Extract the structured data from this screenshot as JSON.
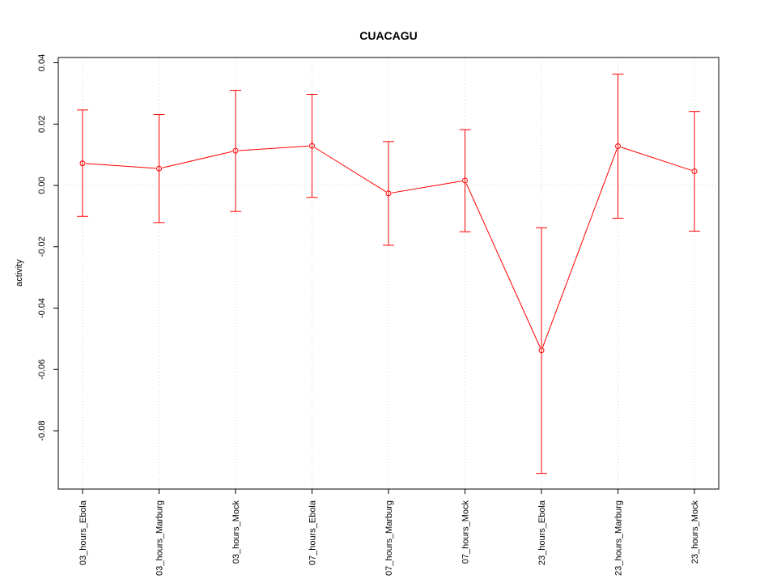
{
  "chart_data": {
    "type": "line",
    "title": "CUACAGU",
    "xlabel": "",
    "ylabel": "activity",
    "categories": [
      "03_hours_Ebola",
      "03_hours_Marburg",
      "03_hours_Mock",
      "07_hours_Ebola",
      "07_hours_Marburg",
      "07_hours_Mock",
      "23_hours_Ebola",
      "23_hours_Marburg",
      "23_hours_Mock"
    ],
    "series": [
      {
        "values": [
          0.0072,
          0.0055,
          0.0113,
          0.0129,
          -0.0026,
          0.0016,
          -0.0538,
          0.0128,
          0.0046
        ],
        "lower": [
          -0.0101,
          -0.0121,
          -0.0085,
          -0.0039,
          -0.0195,
          -0.0151,
          -0.0939,
          -0.0107,
          -0.0149
        ],
        "upper": [
          0.0246,
          0.0231,
          0.031,
          0.0297,
          0.0143,
          0.0182,
          -0.0138,
          0.0363,
          0.0241
        ]
      }
    ],
    "ylim": [
      -0.1,
      0.04
    ],
    "yticks": [
      "-0.08",
      "-0.06",
      "-0.04",
      "-0.02",
      "0.00",
      "0.02",
      "0.04"
    ],
    "grid": true,
    "color": "#ff0000",
    "grid_color": "#d3d3d3"
  }
}
